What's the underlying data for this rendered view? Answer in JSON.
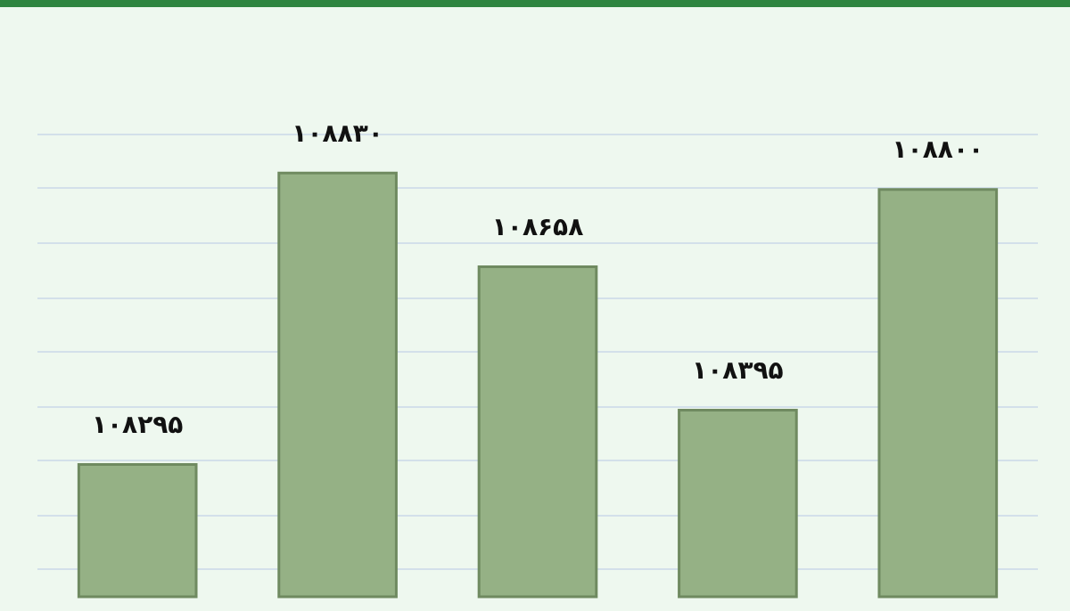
{
  "chart_data": {
    "type": "bar",
    "categories": [
      null,
      null,
      null,
      null,
      null
    ],
    "values": [
      108295,
      108830,
      108658,
      108395,
      108800
    ],
    "value_labels": [
      "۱۰۸۲۹۵",
      "۱۰۸۸۳۰",
      "۱۰۸۶۵۸",
      "۱۰۸۳۹۵",
      "۱۰۸۸۰۰"
    ],
    "color": "#95b185",
    "ylim": [
      108050,
      108900
    ],
    "yticks": [
      {
        "value": 108100,
        "label": null
      },
      {
        "value": 108200,
        "label": null
      },
      {
        "value": 108300,
        "label": null
      },
      {
        "value": 108400,
        "label": null
      },
      {
        "value": 108500,
        "label": null
      },
      {
        "value": 108600,
        "label": null
      },
      {
        "value": 108700,
        "label": null
      },
      {
        "value": 108800,
        "label": null
      },
      {
        "value": 108900,
        "label": null
      }
    ],
    "grid": "y"
  }
}
